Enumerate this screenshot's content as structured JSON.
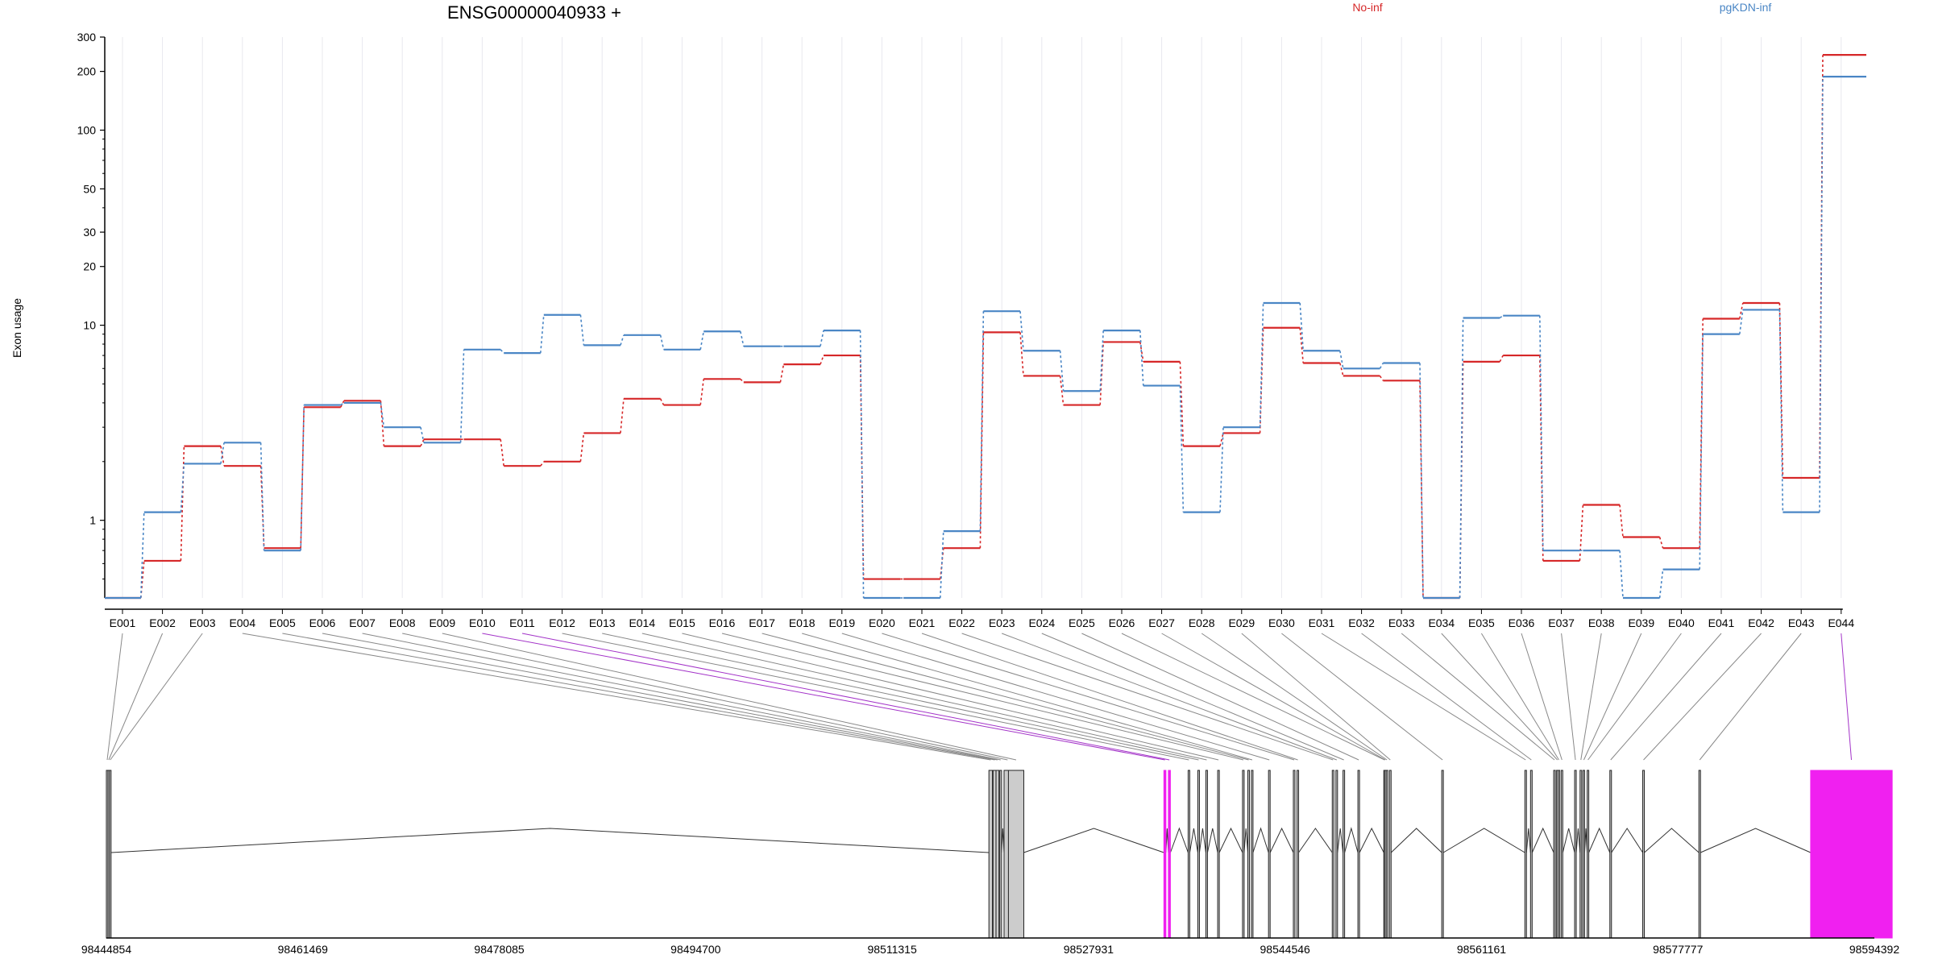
{
  "chart_data": {
    "type": "line",
    "title": "ENSG00000040933 +",
    "ylabel": "Exon usage",
    "xlabel": "",
    "y_scale": "log",
    "ylim": [
      0.4,
      300
    ],
    "y_ticks": [
      1,
      10,
      20,
      30,
      50,
      100,
      200,
      300
    ],
    "grid": "vertical lines at each exon",
    "legend_placement": "top-right",
    "categories": [
      "E001",
      "E002",
      "E003",
      "E004",
      "E005",
      "E006",
      "E007",
      "E008",
      "E009",
      "E010",
      "E011",
      "E012",
      "E013",
      "E014",
      "E015",
      "E016",
      "E017",
      "E018",
      "E019",
      "E020",
      "E021",
      "E022",
      "E023",
      "E024",
      "E025",
      "E026",
      "E027",
      "E028",
      "E029",
      "E030",
      "E031",
      "E032",
      "E033",
      "E034",
      "E035",
      "E036",
      "E037",
      "E038",
      "E039",
      "E040",
      "E041",
      "E042",
      "E043",
      "E044"
    ],
    "series": [
      {
        "name": "No-inf",
        "color": "#d62728",
        "values": [
          0.4,
          0.62,
          2.4,
          1.9,
          0.72,
          3.8,
          4.1,
          2.4,
          2.6,
          2.6,
          1.9,
          2.0,
          2.8,
          4.2,
          3.9,
          5.3,
          5.1,
          6.3,
          7.0,
          0.5,
          0.5,
          0.72,
          9.2,
          5.5,
          3.9,
          8.2,
          6.5,
          2.4,
          2.8,
          9.7,
          6.4,
          5.5,
          5.2,
          0.4,
          6.5,
          7.0,
          0.62,
          1.2,
          0.82,
          0.72,
          10.8,
          13.0,
          1.65,
          243
        ]
      },
      {
        "name": "pgKDN-inf",
        "color": "#4a86c5",
        "values": [
          0.4,
          1.1,
          1.95,
          2.5,
          0.7,
          3.9,
          4.0,
          3.0,
          2.5,
          7.5,
          7.2,
          11.3,
          7.9,
          8.9,
          7.5,
          9.3,
          7.8,
          7.8,
          9.4,
          0.4,
          0.4,
          0.88,
          11.8,
          7.4,
          4.6,
          9.4,
          4.9,
          1.1,
          3.0,
          13.0,
          7.4,
          6.0,
          6.4,
          0.4,
          10.9,
          11.2,
          0.7,
          0.7,
          0.4,
          0.56,
          9.0,
          12.0,
          1.1,
          188
        ]
      }
    ],
    "gene_model": {
      "genomic_axis_ticks": [
        "98444854",
        "98461469",
        "98478085",
        "98494700",
        "98511315",
        "98527931",
        "98544546",
        "98561161",
        "98577777",
        "98594392"
      ],
      "genome_range": [
        98444854,
        98594392
      ],
      "highlight_color": "#f020f0",
      "highlighted_exons": [
        "E010",
        "E011",
        "E044"
      ],
      "exon_positions": [
        98444854,
        98444985,
        98445115,
        98519500,
        98519850,
        98520100,
        98520420,
        98520780,
        98521150,
        98534300,
        98534680,
        98536350,
        98537170,
        98537850,
        98538850,
        98540950,
        98541400,
        98541700,
        98543150,
        98545250,
        98545560,
        98548540,
        98548850,
        98549450,
        98550710,
        98552900,
        98552960,
        98553100,
        98553380,
        98557800,
        98564830,
        98565310,
        98567270,
        98567510,
        98567640,
        98567900,
        98569040,
        98569500,
        98569750,
        98570100,
        98572020,
        98574800,
        98579550,
        98589000
      ],
      "exon_widths": [
        120,
        120,
        120,
        300,
        300,
        250,
        150,
        600,
        1300,
        170,
        170,
        80,
        80,
        80,
        80,
        80,
        80,
        80,
        80,
        80,
        80,
        80,
        80,
        80,
        80,
        80,
        80,
        80,
        80,
        80,
        80,
        80,
        80,
        80,
        80,
        80,
        80,
        80,
        80,
        80,
        80,
        80,
        80,
        6900
      ]
    }
  }
}
